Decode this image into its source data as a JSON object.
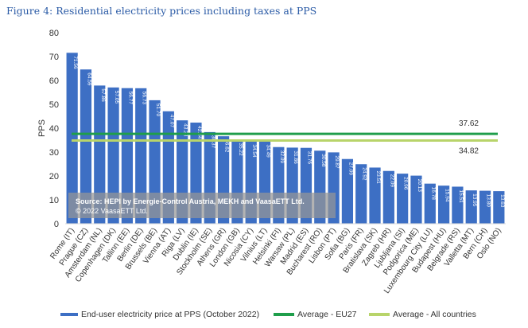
{
  "figure_title": "Figure 4: Residential electricity prices including taxes at PPS",
  "chart_data": {
    "type": "bar",
    "title": "",
    "xlabel": "",
    "ylabel": "PPS",
    "ylim": [
      0,
      80
    ],
    "yticks": [
      0,
      10,
      20,
      30,
      40,
      50,
      60,
      70,
      80
    ],
    "grid": false,
    "categories": [
      "Rome (IT)",
      "Prague (CZ)",
      "Amsterdam (NL)",
      "Copenhagen (DK)",
      "Tallinn (EE)",
      "Berlin (DE)",
      "Brussels (BE)",
      "Vienna (AT)",
      "Riga (LV)",
      "Dublin (IE)",
      "Stockholm (SE)",
      "Athens (GR)",
      "London (GB)",
      "Nicosia (CY)",
      "Vilnius (LT)",
      "Helsinki (FI)",
      "Warsaw (PL)",
      "Madrid (ES)",
      "Bucharest (RO)",
      "Lisbon (PT)",
      "Sofia (BG)",
      "Paris (FR)",
      "Bratislava (SK)",
      "Zagreb (HR)",
      "Ljubljana (SI)",
      "Podgorica (ME)",
      "Luxembourg City (LU)",
      "Budapest (HU)",
      "Belgrade (RS)",
      "Valletta (MT)",
      "Bern (CH)",
      "Oslo (NO)"
    ],
    "series": [
      {
        "name": "End-user electricity price at PPS (October 2022)",
        "color": "#3d6fc4",
        "values": [
          71.56,
          64.59,
          57.86,
          57.05,
          56.77,
          56.73,
          51.7,
          47.07,
          43.28,
          42.34,
          38.37,
          36.62,
          35.22,
          34.54,
          34.49,
          32.09,
          31.86,
          31.76,
          30.58,
          29.87,
          27.09,
          24.92,
          23.51,
          22.09,
          20.96,
          20.13,
          16.78,
          15.94,
          15.51,
          13.95,
          13.8,
          13.63
        ],
        "labels": [
          "71.56",
          "64.59",
          "57.86",
          "57.05",
          "56.77",
          "56.73",
          "51.70",
          "47.07",
          "43.28",
          "42.34",
          "38.37",
          "36.62",
          "35.22",
          "34.54",
          "34.49",
          "32.09",
          "31.86",
          "31.76",
          "30.58",
          "29.87",
          "27.09",
          "24.92",
          "23.51",
          "22.09",
          "20.96",
          "20.13",
          "16.78",
          "15.94",
          "15.51",
          "13.95",
          "13.80",
          "13.63"
        ]
      }
    ],
    "reference_lines": [
      {
        "name": "Average - EU27",
        "value": 37.62,
        "label": "37.62",
        "color": "#1f9e4b"
      },
      {
        "name": "Average - All countries",
        "value": 34.82,
        "label": "34.82",
        "color": "#b8d46a"
      }
    ],
    "annotation": {
      "line1": "Source: HEPI by Energie-Control Austria, MEKH and VaasaETT Ltd.",
      "line2": "© 2022 VaasaETT Ltd."
    },
    "legend_position": "bottom"
  },
  "legend": [
    {
      "label": "End-user electricity price at PPS (October 2022)",
      "color": "#3d6fc4"
    },
    {
      "label": "Average - EU27",
      "color": "#1f9e4b"
    },
    {
      "label": "Average - All countries",
      "color": "#b8d46a"
    }
  ]
}
